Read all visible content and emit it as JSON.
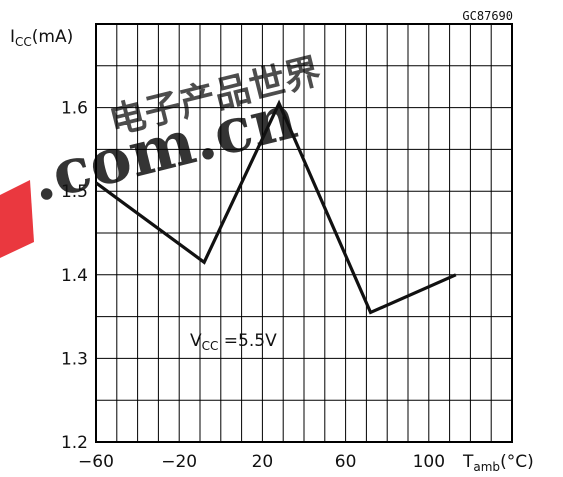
{
  "figure_id": "GC87690",
  "watermark": {
    "domain_text": ".com.cn",
    "chinese_text": "电子产品世界"
  },
  "chart_data": {
    "type": "line",
    "title": "",
    "x": [
      -60,
      -8,
      28,
      72,
      113
    ],
    "y": [
      1.51,
      1.415,
      1.605,
      1.355,
      1.4
    ],
    "xlim": [
      -60,
      140
    ],
    "ylim": [
      1.2,
      1.6
    ],
    "x_grid_step": 10,
    "y_grid_step": 0.05,
    "grid": true,
    "xticks": [
      -60,
      -20,
      20,
      60,
      100
    ],
    "xtick_labels": [
      "−60",
      "−20",
      "20",
      "60",
      "100"
    ],
    "yticks": [
      1.2,
      1.3,
      1.4,
      1.5,
      1.6
    ],
    "ytick_labels": [
      "1.2",
      "1.3",
      "1.4",
      "1.5",
      "1.6"
    ],
    "ylabel": {
      "main": "I",
      "sub": "CC",
      "unit": "(mA)"
    },
    "xlabel": {
      "main": "T",
      "sub": "amb",
      "unit": "(°C)"
    },
    "annotation": {
      "main": "V",
      "sub": "CC",
      "rest": " =5.5V"
    },
    "series_color": "#111111",
    "grid_color": "#000000",
    "watermark_color": "#e8222a"
  }
}
